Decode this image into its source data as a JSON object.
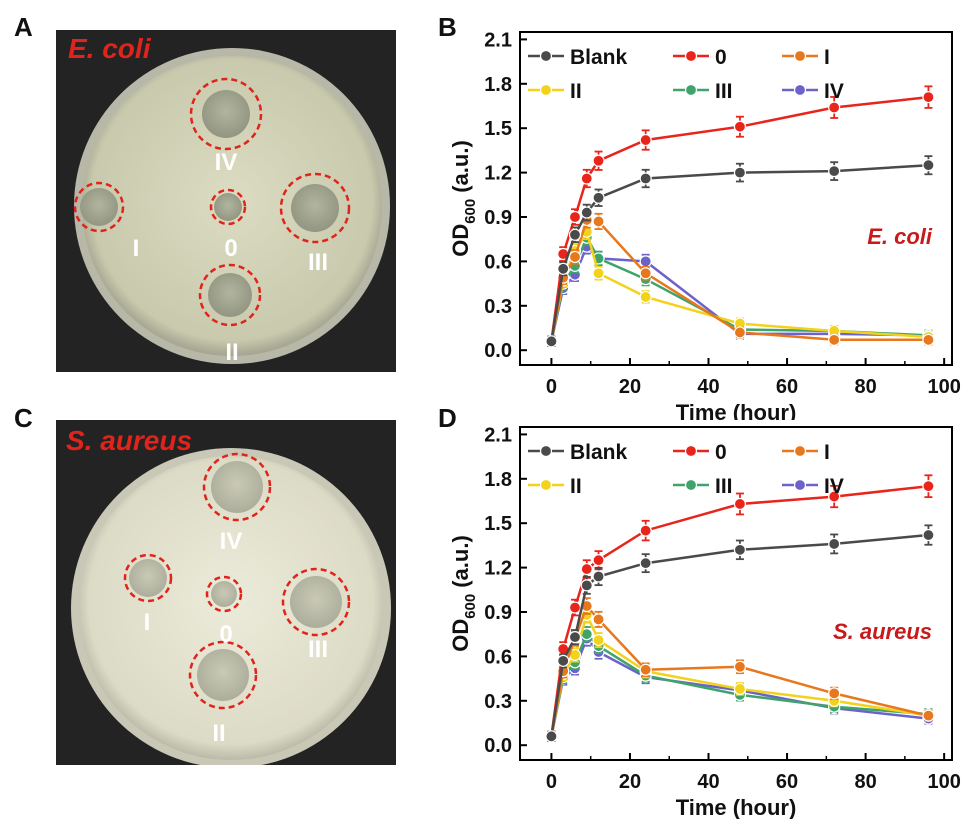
{
  "panels": {
    "a": "A",
    "b": "B",
    "c": "C",
    "d": "D"
  },
  "plates": [
    {
      "title": "E. coli",
      "title_color": "#e0241b",
      "labels": [
        "IV",
        "I",
        "0",
        "III",
        "II"
      ]
    },
    {
      "title": "S. aureus",
      "title_color": "#e0241b",
      "labels": [
        "IV",
        "I",
        "0",
        "III",
        "II"
      ]
    }
  ],
  "chart_data": [
    {
      "type": "line",
      "annotation": "E. coli",
      "xlabel": "Time (hour)",
      "ylabel": "OD",
      "ylabel_sub": "600",
      "ylabel_unit": "(a.u.)",
      "xlim": [
        -8,
        102
      ],
      "ylim": [
        -0.1,
        2.15
      ],
      "xticks": [
        0,
        20,
        40,
        60,
        80,
        100
      ],
      "yticks": [
        0.0,
        0.3,
        0.6,
        0.9,
        1.2,
        1.5,
        1.8,
        2.1
      ],
      "ytick_labels": [
        "0.0",
        "0.3",
        "0.6",
        "0.9",
        "1.2",
        "1.5",
        "1.8",
        "2.1"
      ],
      "legend_position": "top",
      "x": [
        0,
        3,
        6,
        9,
        12,
        24,
        48,
        72,
        96
      ],
      "series": [
        {
          "name": "Blank",
          "color": "#4a4a4a",
          "values": [
            0.06,
            0.55,
            0.78,
            0.93,
            1.03,
            1.16,
            1.2,
            1.21,
            1.25
          ]
        },
        {
          "name": "0",
          "color": "#e8241b",
          "values": [
            0.06,
            0.65,
            0.9,
            1.16,
            1.28,
            1.42,
            1.51,
            1.64,
            1.71
          ]
        },
        {
          "name": "I",
          "color": "#e8781e",
          "values": [
            0.06,
            0.49,
            0.63,
            0.88,
            0.87,
            0.52,
            0.12,
            0.07,
            0.07
          ]
        },
        {
          "name": "II",
          "color": "#f2d21a",
          "values": [
            0.06,
            0.47,
            0.67,
            0.8,
            0.52,
            0.36,
            0.18,
            0.13,
            0.09
          ]
        },
        {
          "name": "III",
          "color": "#3fa36a",
          "values": [
            0.06,
            0.45,
            0.57,
            0.76,
            0.62,
            0.48,
            0.14,
            0.13,
            0.1
          ]
        },
        {
          "name": "IV",
          "color": "#6b63c9",
          "values": [
            0.06,
            0.42,
            0.51,
            0.7,
            0.62,
            0.6,
            0.11,
            0.11,
            0.1
          ]
        }
      ]
    },
    {
      "type": "line",
      "annotation": "S. aureus",
      "xlabel": "Time (hour)",
      "ylabel": "OD",
      "ylabel_sub": "600",
      "ylabel_unit": "(a.u.)",
      "xlim": [
        -8,
        102
      ],
      "ylim": [
        -0.1,
        2.15
      ],
      "xticks": [
        0,
        20,
        40,
        60,
        80,
        100
      ],
      "yticks": [
        0.0,
        0.3,
        0.6,
        0.9,
        1.2,
        1.5,
        1.8,
        2.1
      ],
      "ytick_labels": [
        "0.0",
        "0.3",
        "0.6",
        "0.9",
        "1.2",
        "1.5",
        "1.8",
        "2.1"
      ],
      "legend_position": "top",
      "x": [
        0,
        3,
        6,
        9,
        12,
        24,
        48,
        72,
        96
      ],
      "series": [
        {
          "name": "Blank",
          "color": "#4a4a4a",
          "values": [
            0.06,
            0.57,
            0.73,
            1.08,
            1.14,
            1.23,
            1.32,
            1.36,
            1.42
          ]
        },
        {
          "name": "0",
          "color": "#e8241b",
          "values": [
            0.06,
            0.65,
            0.93,
            1.19,
            1.25,
            1.45,
            1.63,
            1.68,
            1.75
          ]
        },
        {
          "name": "I",
          "color": "#e8781e",
          "values": [
            0.06,
            0.5,
            0.72,
            0.94,
            0.85,
            0.51,
            0.53,
            0.35,
            0.2
          ]
        },
        {
          "name": "II",
          "color": "#f2d21a",
          "values": [
            0.06,
            0.48,
            0.61,
            0.88,
            0.71,
            0.5,
            0.38,
            0.3,
            0.2
          ]
        },
        {
          "name": "III",
          "color": "#3fa36a",
          "values": [
            0.06,
            0.46,
            0.56,
            0.75,
            0.67,
            0.47,
            0.34,
            0.26,
            0.21
          ]
        },
        {
          "name": "IV",
          "color": "#6b63c9",
          "values": [
            0.06,
            0.45,
            0.52,
            0.72,
            0.63,
            0.46,
            0.37,
            0.25,
            0.18
          ]
        }
      ]
    }
  ]
}
